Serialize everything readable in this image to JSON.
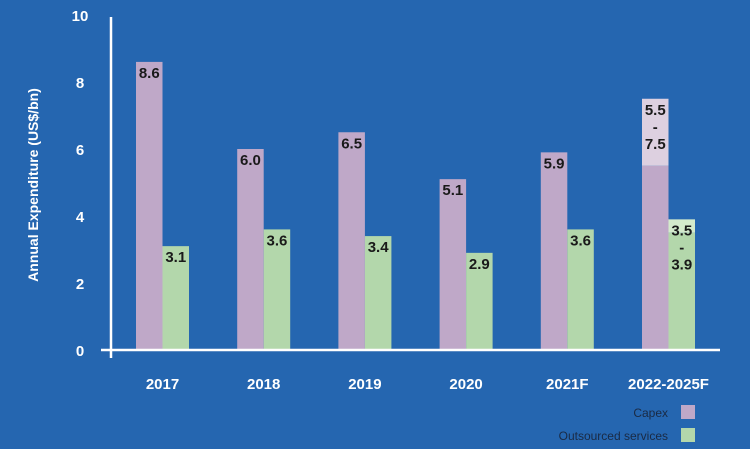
{
  "chart_data": {
    "type": "bar",
    "title": "",
    "xlabel": "",
    "ylabel": "Annual Expenditure (US$/bn)",
    "ylim": [
      0,
      10
    ],
    "yticks": [
      "0",
      "2",
      "4",
      "6",
      "8",
      "10"
    ],
    "grid": false,
    "legend_placement": "bottom-right",
    "categories": [
      "2017",
      "2018",
      "2019",
      "2020",
      "2021F",
      "2022-2025F"
    ],
    "series": [
      {
        "name": "Capex",
        "color": "#bfa8c8",
        "range_color": "#ddd0e0",
        "values": [
          8.6,
          6.0,
          6.5,
          5.1,
          5.9,
          [
            5.5,
            7.5
          ]
        ],
        "labels": [
          "8.6",
          "6.0",
          "6.5",
          "5.1",
          "5.9",
          "5.5\n-\n7.5"
        ]
      },
      {
        "name": "Outsourced services",
        "color": "#b3d7ab",
        "range_color": "#d4ebcc",
        "values": [
          3.1,
          3.6,
          3.4,
          2.9,
          3.6,
          [
            3.5,
            3.9
          ]
        ],
        "labels": [
          "3.1",
          "3.6",
          "3.4",
          "2.9",
          "3.6",
          "3.5\n-\n3.9"
        ]
      }
    ]
  },
  "colors": {
    "background": "#2566b0",
    "axis": "#ffffff"
  }
}
